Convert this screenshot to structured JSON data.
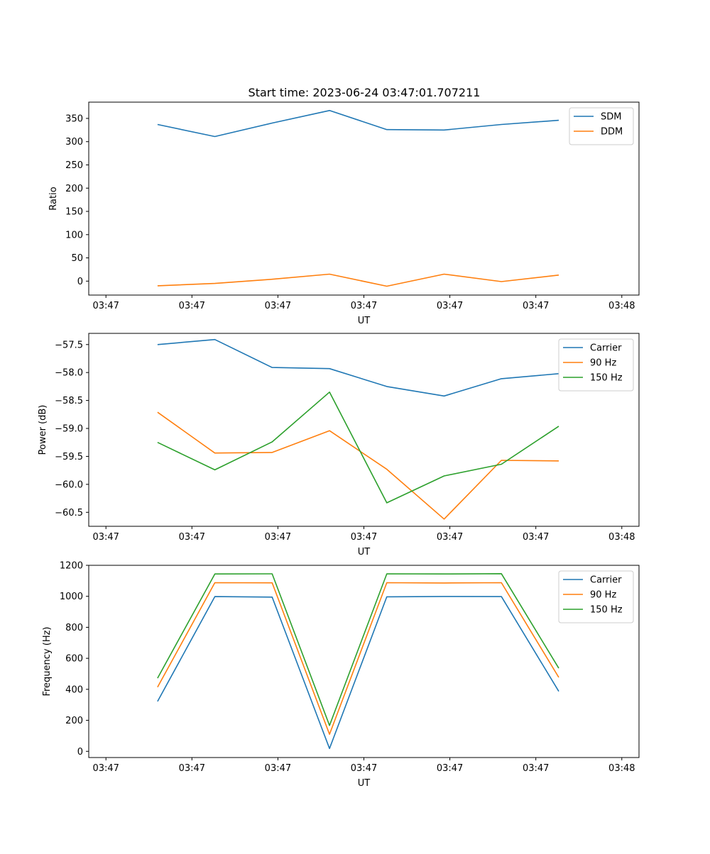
{
  "figure": {
    "title": "Start time: 2023-06-24 03:47:01.707211"
  },
  "chart_data": [
    {
      "type": "line",
      "xlabel": "UT",
      "ylabel": "Ratio",
      "x": [
        0.7,
        1.2,
        1.7,
        2.2,
        2.7,
        3.2,
        3.7,
        4.2
      ],
      "x_tick_labels": [
        "03:47",
        "03:47",
        "03:47",
        "03:47",
        "03:47",
        "03:47",
        "03:48"
      ],
      "xlim": [
        0.1,
        4.9
      ],
      "ylim": [
        -30,
        385
      ],
      "y_ticks": [
        0,
        50,
        100,
        150,
        200,
        250,
        300,
        350
      ],
      "y_tick_labels": [
        "0",
        "50",
        "100",
        "150",
        "200",
        "250",
        "300",
        "350"
      ],
      "grid": false,
      "legend": "top-right",
      "series": [
        {
          "name": "SDM",
          "color": "#1f77b4",
          "values": [
            337,
            311,
            340,
            367,
            326,
            325,
            337,
            346
          ]
        },
        {
          "name": "DDM",
          "color": "#ff7f0e",
          "values": [
            -10,
            -5,
            4,
            15,
            -11,
            15,
            -1,
            13
          ]
        }
      ]
    },
    {
      "type": "line",
      "xlabel": "UT",
      "ylabel": "Power (dB)",
      "x": [
        0.7,
        1.2,
        1.7,
        2.2,
        2.7,
        3.2,
        3.7,
        4.2
      ],
      "x_tick_labels": [
        "03:47",
        "03:47",
        "03:47",
        "03:47",
        "03:47",
        "03:47",
        "03:48"
      ],
      "xlim": [
        0.1,
        4.9
      ],
      "ylim": [
        -60.75,
        -57.3
      ],
      "y_ticks": [
        -60.5,
        -60.0,
        -59.5,
        -59.0,
        -58.5,
        -58.0,
        -57.5
      ],
      "y_tick_labels": [
        "−60.5",
        "−60.0",
        "−59.5",
        "−59.0",
        "−58.5",
        "−58.0",
        "−57.5"
      ],
      "grid": false,
      "legend": "top-right",
      "series": [
        {
          "name": "Carrier",
          "color": "#1f77b4",
          "values": [
            -57.5,
            -57.41,
            -57.91,
            -57.93,
            -58.25,
            -58.42,
            -58.11,
            -58.02
          ]
        },
        {
          "name": "90 Hz",
          "color": "#ff7f0e",
          "values": [
            -58.71,
            -59.44,
            -59.43,
            -59.04,
            -59.73,
            -60.62,
            -59.57,
            -59.58
          ]
        },
        {
          "name": "150 Hz",
          "color": "#2ca02c",
          "values": [
            -59.25,
            -59.74,
            -59.24,
            -58.35,
            -60.33,
            -59.85,
            -59.64,
            -58.96
          ]
        }
      ]
    },
    {
      "type": "line",
      "xlabel": "UT",
      "ylabel": "Frequency (Hz)",
      "x": [
        0.7,
        1.2,
        1.7,
        2.2,
        2.7,
        3.2,
        3.7,
        4.2
      ],
      "x_tick_labels": [
        "03:47",
        "03:47",
        "03:47",
        "03:47",
        "03:47",
        "03:47",
        "03:48"
      ],
      "xlim": [
        0.1,
        4.9
      ],
      "ylim": [
        -40,
        1200
      ],
      "y_ticks": [
        0,
        200,
        400,
        600,
        800,
        1000,
        1200
      ],
      "y_tick_labels": [
        "0",
        "200",
        "400",
        "600",
        "800",
        "1000",
        "1200"
      ],
      "grid": false,
      "legend": "top-right",
      "series": [
        {
          "name": "Carrier",
          "color": "#1f77b4",
          "values": [
            322,
            998,
            995,
            18,
            997,
            999,
            998,
            387
          ]
        },
        {
          "name": "90 Hz",
          "color": "#ff7f0e",
          "values": [
            414,
            1088,
            1087,
            110,
            1088,
            1086,
            1088,
            477
          ]
        },
        {
          "name": "150 Hz",
          "color": "#2ca02c",
          "values": [
            472,
            1144,
            1145,
            167,
            1145,
            1144,
            1146,
            536
          ]
        }
      ]
    }
  ]
}
